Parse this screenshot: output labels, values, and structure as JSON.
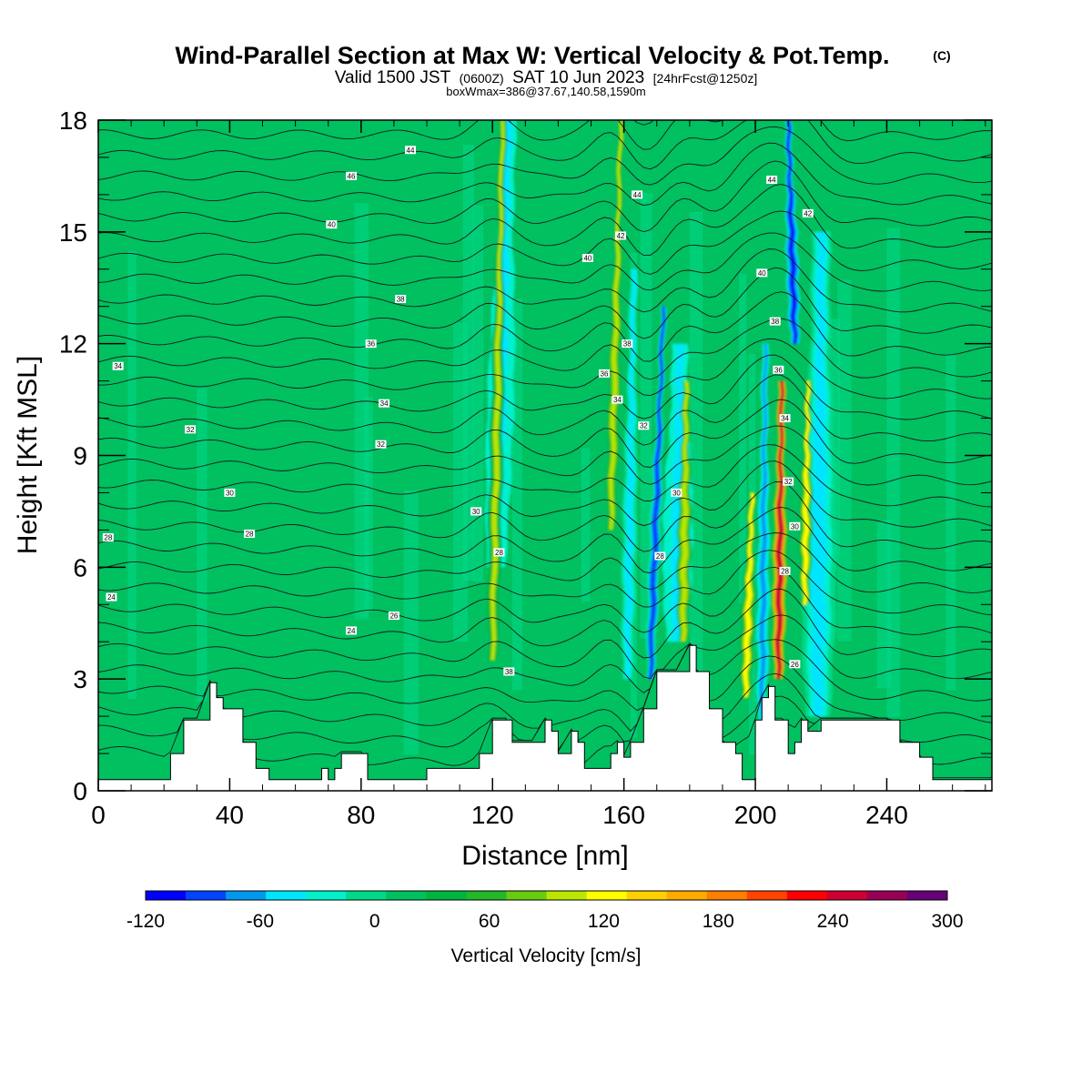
{
  "header": {
    "title": "Wind-Parallel Section at Max W: Vertical Velocity & Pot.Temp.",
    "copyright": "(C)",
    "valid_prefix": "Valid 1500 JST",
    "valid_utc": "(0600Z)",
    "valid_date": "SAT 10 Jun 2023",
    "forecast": "[24hrFcst@1250z]",
    "boxinfo": "boxWmax=386@37.67,140.58,1590m"
  },
  "chart_data": {
    "type": "heatmap",
    "xlabel": "Distance [nm]",
    "ylabel": "Height [Kft MSL]",
    "xlim": [
      0,
      272
    ],
    "ylim": [
      0,
      18
    ],
    "x_ticks": [
      "0",
      "40",
      "80",
      "120",
      "160",
      "200",
      "240"
    ],
    "y_ticks": [
      "0",
      "3",
      "6",
      "9",
      "12",
      "15",
      "18"
    ],
    "colorbar": {
      "label": "Vertical Velocity [cm/s]",
      "tick_labels": [
        "-120",
        "-60",
        "0",
        "60",
        "120",
        "180",
        "240",
        "300"
      ],
      "ticks": [
        -120,
        -60,
        0,
        60,
        120,
        180,
        240,
        300
      ],
      "min": -120,
      "max": 300,
      "colors": [
        "#0000ff",
        "#0044ff",
        "#0099ee",
        "#00e5ff",
        "#00f0cc",
        "#00d98a",
        "#00c060",
        "#00b440",
        "#22b82a",
        "#66cc10",
        "#bbe600",
        "#ffff00",
        "#ffd000",
        "#ffaa00",
        "#ff7f00",
        "#ff4400",
        "#ff0000",
        "#cc0033",
        "#990055",
        "#660077"
      ]
    },
    "terrain": [
      [
        0,
        0.3
      ],
      [
        20,
        0.3
      ],
      [
        22,
        1.0
      ],
      [
        26,
        1.9
      ],
      [
        30,
        1.9
      ],
      [
        34,
        2.9
      ],
      [
        36,
        2.5
      ],
      [
        38,
        2.2
      ],
      [
        44,
        1.3
      ],
      [
        48,
        0.6
      ],
      [
        52,
        0.3
      ],
      [
        64,
        0.3
      ],
      [
        68,
        0.6
      ],
      [
        70,
        0.3
      ],
      [
        72,
        0.6
      ],
      [
        74,
        1.0
      ],
      [
        80,
        1.0
      ],
      [
        82,
        0.3
      ],
      [
        96,
        0.3
      ],
      [
        100,
        0.6
      ],
      [
        112,
        0.6
      ],
      [
        116,
        1.0
      ],
      [
        120,
        1.9
      ],
      [
        124,
        1.9
      ],
      [
        126,
        1.3
      ],
      [
        132,
        1.3
      ],
      [
        136,
        1.9
      ],
      [
        138,
        1.6
      ],
      [
        140,
        1.0
      ],
      [
        144,
        1.6
      ],
      [
        146,
        1.3
      ],
      [
        148,
        0.6
      ],
      [
        154,
        0.6
      ],
      [
        156,
        1.0
      ],
      [
        158,
        1.3
      ],
      [
        160,
        0.9
      ],
      [
        162,
        1.3
      ],
      [
        166,
        2.2
      ],
      [
        170,
        3.2
      ],
      [
        176,
        3.2
      ],
      [
        180,
        3.9
      ],
      [
        182,
        3.2
      ],
      [
        186,
        2.2
      ],
      [
        190,
        1.3
      ],
      [
        194,
        1.0
      ],
      [
        196,
        0.3
      ],
      [
        198,
        0.3
      ],
      [
        200,
        1.9
      ],
      [
        202,
        2.5
      ],
      [
        204,
        2.8
      ],
      [
        206,
        1.9
      ],
      [
        208,
        1.9
      ],
      [
        210,
        1.0
      ],
      [
        212,
        1.3
      ],
      [
        214,
        1.9
      ],
      [
        216,
        1.6
      ],
      [
        220,
        1.9
      ],
      [
        240,
        1.9
      ],
      [
        244,
        1.3
      ],
      [
        250,
        0.9
      ],
      [
        254,
        0.3
      ],
      [
        272,
        0.3
      ]
    ],
    "streaks": [
      {
        "x": 120,
        "from": 3.5,
        "to": 18,
        "w": 2.2,
        "value": 100,
        "slant": 3
      },
      {
        "x": 121,
        "from": 6,
        "to": 18,
        "w": 4.5,
        "value": -45,
        "slant": 4
      },
      {
        "x": 156,
        "from": 7,
        "to": 18,
        "w": 1.8,
        "value": 110,
        "slant": 3
      },
      {
        "x": 161,
        "from": 3,
        "to": 14,
        "w": 2.5,
        "value": -40,
        "slant": 2
      },
      {
        "x": 168,
        "from": 3,
        "to": 13,
        "w": 1.8,
        "value": -90,
        "slant": 4
      },
      {
        "x": 178,
        "from": 4,
        "to": 11,
        "w": 2.2,
        "value": 110,
        "slant": 1
      },
      {
        "x": 176,
        "from": 4,
        "to": 12,
        "w": 5,
        "value": -45,
        "slant": 1
      },
      {
        "x": 197,
        "from": 2.5,
        "to": 8,
        "w": 2.2,
        "value": 130,
        "slant": 2
      },
      {
        "x": 202,
        "from": 1.5,
        "to": 12,
        "w": 2,
        "value": -60,
        "slant": 1
      },
      {
        "x": 207,
        "from": 3,
        "to": 11,
        "w": 2.4,
        "value": 245,
        "slant": 1
      },
      {
        "x": 215,
        "from": 5,
        "to": 11,
        "w": 2,
        "value": 125,
        "slant": 1
      },
      {
        "x": 212,
        "from": 12,
        "to": 18,
        "w": 2,
        "value": -110,
        "slant": -2
      },
      {
        "x": 219,
        "from": 2,
        "to": 15,
        "w": 6,
        "value": -40,
        "slant": 1
      }
    ],
    "contour_labels": [
      {
        "x": 95,
        "y": 17.2,
        "text": "44"
      },
      {
        "x": 77,
        "y": 16.5,
        "text": "46"
      },
      {
        "x": 71,
        "y": 15.2,
        "text": "40"
      },
      {
        "x": 92,
        "y": 13.2,
        "text": "38"
      },
      {
        "x": 83,
        "y": 12.0,
        "text": "36"
      },
      {
        "x": 6,
        "y": 11.4,
        "text": "34"
      },
      {
        "x": 87,
        "y": 10.4,
        "text": "34"
      },
      {
        "x": 28,
        "y": 9.7,
        "text": "32"
      },
      {
        "x": 86,
        "y": 9.3,
        "text": "32"
      },
      {
        "x": 40,
        "y": 8.0,
        "text": "30"
      },
      {
        "x": 115,
        "y": 7.5,
        "text": "30"
      },
      {
        "x": 46,
        "y": 6.9,
        "text": "28"
      },
      {
        "x": 3,
        "y": 6.8,
        "text": "28"
      },
      {
        "x": 122,
        "y": 6.4,
        "text": "28"
      },
      {
        "x": 4,
        "y": 5.2,
        "text": "24"
      },
      {
        "x": 90,
        "y": 4.7,
        "text": "26"
      },
      {
        "x": 77,
        "y": 4.3,
        "text": "24"
      },
      {
        "x": 125,
        "y": 3.2,
        "text": "38"
      },
      {
        "x": 164,
        "y": 16.0,
        "text": "44"
      },
      {
        "x": 159,
        "y": 14.9,
        "text": "42"
      },
      {
        "x": 149,
        "y": 14.3,
        "text": "40"
      },
      {
        "x": 161,
        "y": 12.0,
        "text": "38"
      },
      {
        "x": 154,
        "y": 11.2,
        "text": "36"
      },
      {
        "x": 158,
        "y": 10.5,
        "text": "34"
      },
      {
        "x": 166,
        "y": 9.8,
        "text": "32"
      },
      {
        "x": 176,
        "y": 8.0,
        "text": "30"
      },
      {
        "x": 171,
        "y": 6.3,
        "text": "28"
      },
      {
        "x": 205,
        "y": 16.4,
        "text": "44"
      },
      {
        "x": 216,
        "y": 15.5,
        "text": "42"
      },
      {
        "x": 202,
        "y": 13.9,
        "text": "40"
      },
      {
        "x": 206,
        "y": 12.6,
        "text": "38"
      },
      {
        "x": 207,
        "y": 11.3,
        "text": "36"
      },
      {
        "x": 209,
        "y": 10.0,
        "text": "34"
      },
      {
        "x": 210,
        "y": 8.3,
        "text": "32"
      },
      {
        "x": 212,
        "y": 7.1,
        "text": "30"
      },
      {
        "x": 209,
        "y": 5.9,
        "text": "28"
      },
      {
        "x": 212,
        "y": 3.4,
        "text": "26"
      }
    ]
  }
}
